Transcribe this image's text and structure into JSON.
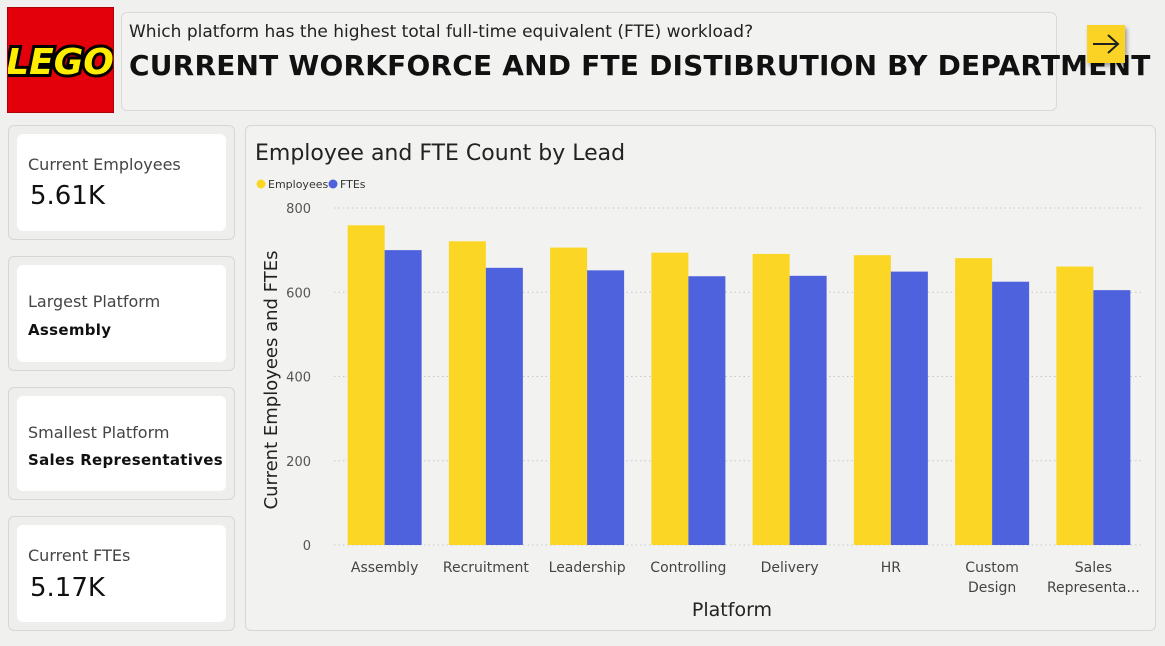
{
  "logo": {
    "text": "LEGO",
    "icon": "lego-logo"
  },
  "header": {
    "question": "Which platform has the highest total full-time equivalent (FTE) workload?",
    "title": "CURRENT WORKFORCE AND FTE DISTIBRUTION BY DEPARTMENT",
    "nav_icon": "arrow-right-icon"
  },
  "cards": {
    "employees": {
      "label": "Current Employees",
      "value": "5.61K"
    },
    "largest": {
      "label": "Largest Platform",
      "value": "Assembly"
    },
    "smallest": {
      "label": "Smallest Platform",
      "value": "Sales Representatives"
    },
    "ftes": {
      "label": "Current FTEs",
      "value": "5.17K"
    }
  },
  "colors": {
    "employees": "#fbd624",
    "ftes": "#4f62de",
    "brand_red": "#e3000b"
  },
  "chart_data": {
    "type": "bar",
    "title": "Employee and FTE Count by Lead",
    "xlabel": "Platform",
    "ylabel": "Current Employees and FTEs",
    "categories": [
      "Assembly",
      "Recruitment",
      "Leadership",
      "Controlling",
      "Delivery",
      "HR",
      "Custom Design",
      "Sales Represental..."
    ],
    "category_lines": [
      [
        "Assembly"
      ],
      [
        "Recruitment"
      ],
      [
        "Leadership"
      ],
      [
        "Controlling"
      ],
      [
        "Delivery"
      ],
      [
        "HR"
      ],
      [
        "Custom",
        "Design"
      ],
      [
        "Sales",
        "Representa..."
      ]
    ],
    "series": [
      {
        "name": "Employees",
        "values": [
          759,
          721,
          706,
          694,
          691,
          688,
          681,
          661
        ]
      },
      {
        "name": "FTEs",
        "values": [
          700,
          658,
          652,
          638,
          639,
          649,
          625,
          605
        ]
      }
    ],
    "ylim": [
      0,
      800
    ],
    "yticks": [
      0,
      200,
      400,
      600,
      800
    ],
    "grid": true,
    "legend_position": "top-left"
  }
}
